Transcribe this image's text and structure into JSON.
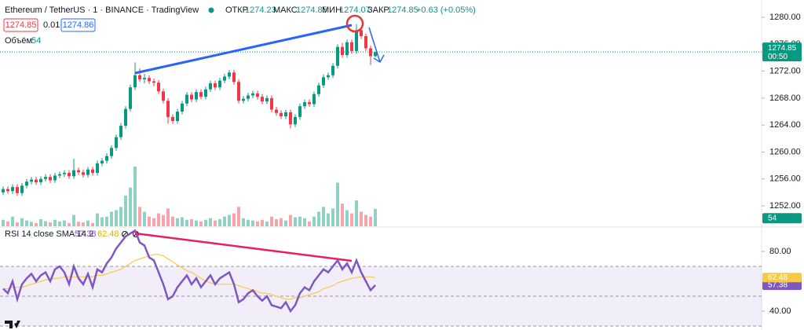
{
  "chart_data": [
    {
      "type": "candlestick",
      "title": "Ethereum / TetherUS · 1 · BINANCE · TradingView",
      "ohlc_labels": [
        "ОТКР",
        "МАКС",
        "МИН",
        "ЗАКР"
      ],
      "change": "+0.63 (+0.05%)",
      "order_panel": {
        "sell": "1274.85",
        "spread": "0.01",
        "buy": "1274.86"
      },
      "countdown": "00:50",
      "up_color": "#089981",
      "down_color": "#f23645",
      "ylim": [
        1248.97,
        1282.57
      ],
      "yticks": [
        {
          "value": 1280,
          "label": "1280.00"
        },
        {
          "value": 1276,
          "label": "1276.00"
        },
        {
          "value": 1272,
          "label": "1272.00"
        },
        {
          "value": 1268,
          "label": "1268.00"
        },
        {
          "value": 1264,
          "label": "1264.00"
        },
        {
          "value": 1260,
          "label": "1260.00"
        },
        {
          "value": 1256,
          "label": "1256.00"
        },
        {
          "value": 1252,
          "label": "1252.00"
        }
      ],
      "open": [
        1254.0,
        1254.5,
        1254.2,
        1254.8,
        1253.9,
        1255.0,
        1255.6,
        1255.9,
        1255.5,
        1256.0,
        1256.3,
        1255.8,
        1256.5,
        1256.7,
        1256.9,
        1256.4,
        1257.3,
        1257.0,
        1256.6,
        1257.4,
        1256.9,
        1258.3,
        1258.7,
        1259.4,
        1260.6,
        1262.2,
        1263.9,
        1266.4,
        1269.6,
        1271.4,
        1270.8,
        1271.0,
        1270.5,
        1270.3,
        1269.0,
        1267.6,
        1265.2,
        1264.6,
        1266.0,
        1267.2,
        1268.5,
        1267.8,
        1268.9,
        1268.2,
        1269.3,
        1270.2,
        1269.6,
        1270.6,
        1271.2,
        1271.8,
        1270.4,
        1267.6,
        1267.9,
        1268.4,
        1268.7,
        1268.2,
        1267.5,
        1268.0,
        1266.3,
        1265.8,
        1265.3,
        1265.9,
        1264.1,
        1265.2,
        1266.8,
        1267.4,
        1267.1,
        1268.6,
        1269.9,
        1271.1,
        1271.4,
        1272.8,
        1275.6,
        1274.4,
        1276.3,
        1275.0,
        1278.1,
        1277.2,
        1275.4,
        1274.23
      ],
      "high": [
        1254.9,
        1254.9,
        1255.2,
        1255.2,
        1255.4,
        1256.0,
        1256.3,
        1256.3,
        1256.4,
        1256.7,
        1256.7,
        1256.9,
        1257.1,
        1257.3,
        1257.3,
        1259.0,
        1257.7,
        1257.4,
        1257.8,
        1257.8,
        1258.7,
        1259.1,
        1259.8,
        1261.0,
        1262.6,
        1264.3,
        1266.8,
        1270.0,
        1273.3,
        1272.4,
        1271.6,
        1271.4,
        1270.9,
        1270.7,
        1269.4,
        1268.0,
        1265.6,
        1266.4,
        1267.6,
        1268.9,
        1268.9,
        1269.3,
        1269.3,
        1269.7,
        1270.6,
        1270.6,
        1271.0,
        1271.6,
        1272.2,
        1272.2,
        1270.8,
        1268.3,
        1268.8,
        1269.1,
        1269.1,
        1268.6,
        1268.4,
        1268.4,
        1266.7,
        1266.2,
        1266.3,
        1266.3,
        1265.6,
        1267.2,
        1267.8,
        1267.8,
        1269.0,
        1270.3,
        1271.5,
        1271.8,
        1273.2,
        1276.0,
        1276.2,
        1276.7,
        1276.7,
        1279.0,
        1278.5,
        1277.6,
        1275.8,
        1274.85
      ],
      "low": [
        1253.6,
        1253.8,
        1253.8,
        1253.5,
        1253.5,
        1254.6,
        1255.2,
        1255.1,
        1255.1,
        1255.6,
        1255.4,
        1255.4,
        1256.1,
        1256.3,
        1256.0,
        1256.0,
        1256.6,
        1256.2,
        1256.2,
        1256.5,
        1256.5,
        1257.9,
        1258.3,
        1259.0,
        1260.2,
        1261.8,
        1263.5,
        1266.0,
        1269.2,
        1270.4,
        1270.2,
        1270.1,
        1269.8,
        1268.6,
        1267.2,
        1264.2,
        1264.2,
        1264.2,
        1265.6,
        1266.8,
        1267.4,
        1267.4,
        1267.8,
        1267.8,
        1268.9,
        1269.2,
        1269.2,
        1270.2,
        1270.8,
        1270.0,
        1267.2,
        1267.2,
        1267.5,
        1268.0,
        1267.8,
        1267.1,
        1267.1,
        1265.9,
        1265.4,
        1264.9,
        1264.9,
        1263.5,
        1263.7,
        1264.8,
        1266.4,
        1266.7,
        1266.7,
        1268.2,
        1269.5,
        1270.7,
        1271.0,
        1272.4,
        1274.0,
        1274.0,
        1274.6,
        1274.6,
        1276.8,
        1275.0,
        1272.9,
        1274.07
      ],
      "close": [
        1254.5,
        1254.2,
        1254.8,
        1253.9,
        1255.0,
        1255.6,
        1255.9,
        1255.5,
        1256.0,
        1256.3,
        1255.8,
        1256.5,
        1256.7,
        1256.9,
        1256.4,
        1257.3,
        1257.0,
        1256.6,
        1257.4,
        1256.9,
        1258.3,
        1258.7,
        1259.4,
        1260.6,
        1262.2,
        1263.9,
        1266.4,
        1269.6,
        1271.4,
        1270.8,
        1271.0,
        1270.5,
        1270.3,
        1269.0,
        1267.6,
        1265.2,
        1264.6,
        1266.0,
        1267.2,
        1268.5,
        1267.8,
        1268.9,
        1268.2,
        1269.3,
        1270.2,
        1269.6,
        1270.6,
        1271.2,
        1271.8,
        1270.4,
        1267.6,
        1267.9,
        1268.4,
        1268.7,
        1268.2,
        1267.5,
        1268.0,
        1266.3,
        1265.8,
        1265.3,
        1265.9,
        1264.1,
        1265.2,
        1266.8,
        1267.4,
        1267.1,
        1268.6,
        1269.9,
        1271.1,
        1271.4,
        1272.8,
        1275.6,
        1274.4,
        1276.3,
        1275.0,
        1278.1,
        1277.2,
        1275.4,
        1274.22,
        1274.85
      ]
    },
    {
      "type": "bar",
      "title": "Объём",
      "up_color": "#089981",
      "down_color": "#f23645",
      "ylim": [
        0,
        700
      ],
      "values": [
        20,
        15,
        30,
        12,
        25,
        18,
        14,
        10,
        22,
        16,
        12,
        20,
        15,
        18,
        10,
        35,
        14,
        12,
        18,
        10,
        40,
        28,
        30,
        45,
        50,
        60,
        95,
        120,
        185,
        60,
        45,
        30,
        25,
        40,
        35,
        55,
        30,
        25,
        28,
        20,
        22,
        18,
        15,
        20,
        25,
        18,
        22,
        30,
        35,
        40,
        60,
        25,
        20,
        18,
        15,
        20,
        15,
        30,
        22,
        25,
        18,
        35,
        28,
        30,
        25,
        15,
        30,
        45,
        60,
        40,
        55,
        135,
        70,
        50,
        40,
        80,
        45,
        35,
        30,
        54
      ]
    },
    {
      "type": "line",
      "title": "RSI 14 close SMA 14 2",
      "ylim": [
        27.37,
        95.79
      ],
      "yticks": [
        {
          "value": 80,
          "label": "80.00"
        },
        {
          "value": 40,
          "label": "40.00"
        }
      ],
      "bands": [
        70,
        50,
        30
      ],
      "band_fill": "#7e57c2",
      "series": [
        {
          "color": "#7e57c2",
          "values": [
            55,
            52,
            60,
            48,
            58,
            62,
            65,
            60,
            64,
            66,
            60,
            68,
            70,
            66,
            58,
            70,
            62,
            58,
            65,
            56,
            68,
            66,
            72,
            76,
            82,
            86,
            90,
            92,
            94,
            86,
            84,
            76,
            74,
            66,
            58,
            48,
            50,
            56,
            60,
            64,
            58,
            62,
            56,
            60,
            64,
            58,
            62,
            64,
            66,
            58,
            46,
            48,
            52,
            54,
            50,
            47,
            50,
            44,
            43,
            42,
            46,
            40,
            44,
            52,
            56,
            54,
            60,
            64,
            68,
            66,
            70,
            74,
            68,
            72,
            66,
            74,
            66,
            60,
            54,
            57.38
          ]
        },
        {
          "color": "#f7c948",
          "values": [
            55,
            55,
            56,
            56,
            56,
            57,
            58,
            59,
            60,
            61,
            61,
            62,
            62,
            63,
            63,
            63,
            63,
            63,
            63,
            63,
            64,
            64,
            65,
            66,
            67,
            68,
            70,
            72,
            74,
            75,
            76,
            77,
            78,
            78,
            77,
            75,
            73,
            71,
            69,
            67,
            66,
            64,
            62,
            60,
            59,
            58,
            58,
            58,
            58,
            58,
            57,
            56,
            55,
            54,
            53,
            52,
            52,
            51,
            50,
            49,
            48,
            48,
            49,
            49,
            50,
            51,
            52,
            53,
            55,
            56,
            57,
            59,
            60,
            61,
            62,
            62.5,
            63,
            63,
            63,
            62.48
          ]
        }
      ]
    }
  ]
}
